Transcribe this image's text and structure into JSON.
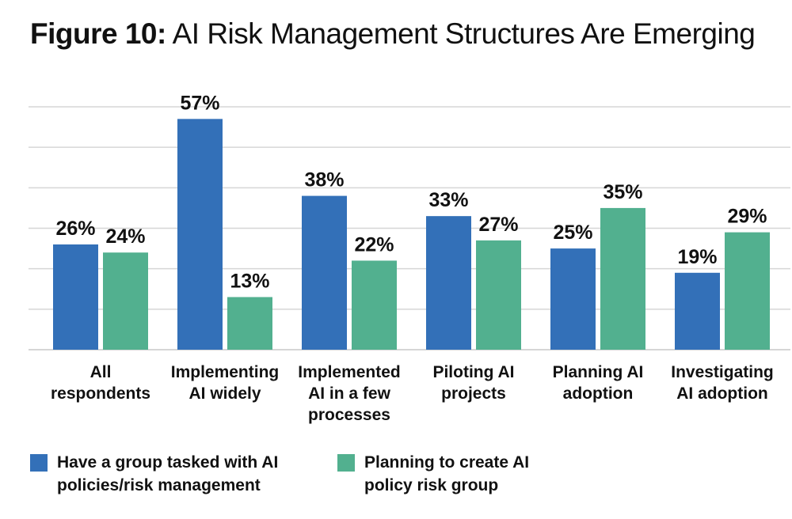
{
  "title": {
    "figure": "Figure 10:",
    "text": "AI Risk Management Structures Are Emerging"
  },
  "chart_data": {
    "type": "bar",
    "categories": [
      [
        "All",
        "respondents"
      ],
      [
        "Implementing",
        "AI widely"
      ],
      [
        "Implemented",
        "AI in a few",
        "processes"
      ],
      [
        "Piloting AI",
        "projects"
      ],
      [
        "Planning AI",
        "adoption"
      ],
      [
        "Investigating",
        "AI adoption"
      ]
    ],
    "series": [
      {
        "name": [
          "Have a group tasked with AI",
          "policies/risk management"
        ],
        "color": "#3370b8",
        "values": [
          26,
          57,
          38,
          33,
          25,
          19
        ],
        "labels": [
          "26%",
          "57%",
          "38%",
          "33%",
          "25%",
          "19%"
        ]
      },
      {
        "name": [
          "Planning to create AI",
          "policy risk group"
        ],
        "color": "#52b08f",
        "values": [
          24,
          13,
          22,
          27,
          35,
          29
        ],
        "labels": [
          "24%",
          "13%",
          "22%",
          "27%",
          "35%",
          "29%"
        ]
      }
    ],
    "ylim": [
      0,
      60
    ],
    "grid": true,
    "legend_position": "bottom"
  }
}
